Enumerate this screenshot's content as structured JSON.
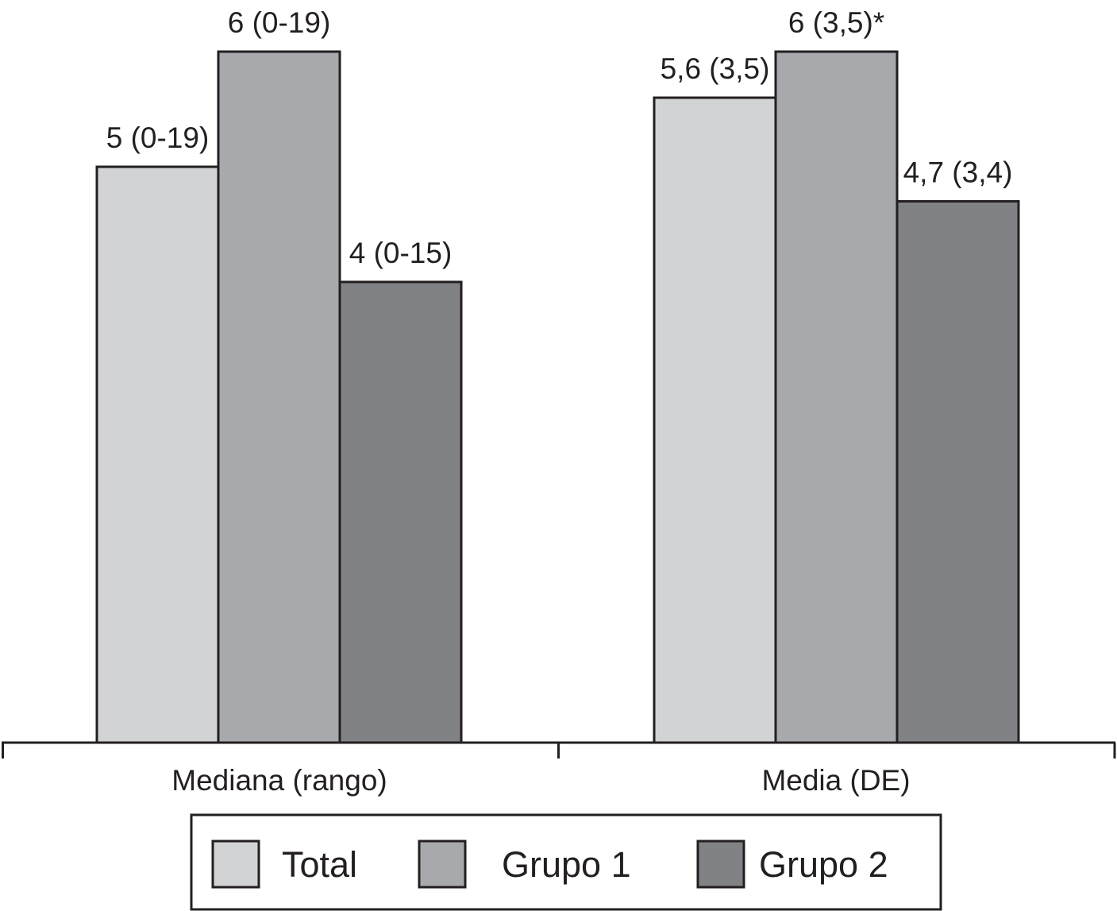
{
  "chart_data": {
    "type": "bar",
    "categories": [
      "Mediana (rango)",
      "Media (DE)"
    ],
    "series": [
      {
        "name": "Total",
        "values": [
          5,
          5.6
        ],
        "labels": [
          "5 (0-19)",
          "5,6 (3,5)"
        ]
      },
      {
        "name": "Grupo 1",
        "values": [
          6,
          6
        ],
        "labels": [
          "6 (0-19)",
          "6 (3,5)*"
        ]
      },
      {
        "name": "Grupo 2",
        "values": [
          4,
          4.7
        ],
        "labels": [
          "4 (0-15)",
          "4,7 (3,4)"
        ]
      }
    ],
    "ylim": [
      0,
      6
    ],
    "grid": false,
    "legend_position": "bottom",
    "colors": {
      "Total": "#d2d3d5",
      "Grupo 1": "#a7a9ac",
      "Grupo 2": "#808285",
      "stroke": "#231f20"
    }
  }
}
